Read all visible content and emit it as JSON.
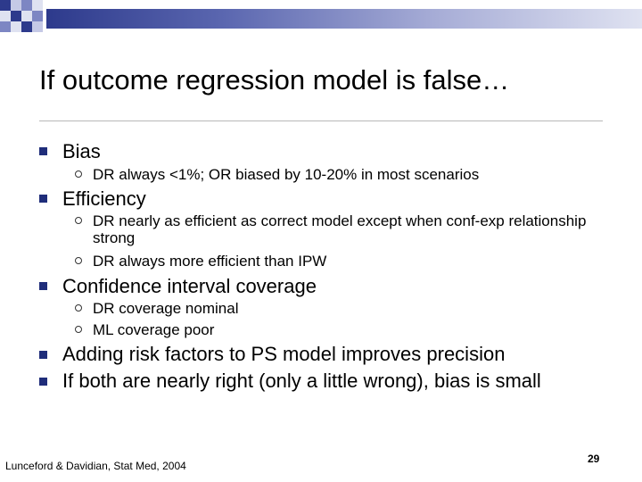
{
  "slide": {
    "title": "If outcome regression model is false…",
    "bullets": [
      {
        "text": "Bias",
        "subs": [
          "DR always <1%; OR biased by 10-20% in most scenarios"
        ]
      },
      {
        "text": "Efficiency",
        "subs": [
          "DR nearly as efficient as correct model except when conf-exp relationship strong",
          "DR always more efficient than IPW"
        ]
      },
      {
        "text": "Confidence interval coverage",
        "subs": [
          "DR coverage nominal",
          "ML coverage poor"
        ]
      },
      {
        "text": "Adding risk factors to PS model improves precision",
        "subs": []
      },
      {
        "text": "If both are nearly right (only a little wrong), bias is small",
        "subs": []
      }
    ],
    "footer": "Lunceford & Davidian, Stat Med, 2004",
    "page_number": "29"
  },
  "colors": {
    "accent": "#1f2d7a",
    "band_start": "#2d3a8c",
    "band_end": "#dfe2f1",
    "rule": "#b8b8b8"
  }
}
